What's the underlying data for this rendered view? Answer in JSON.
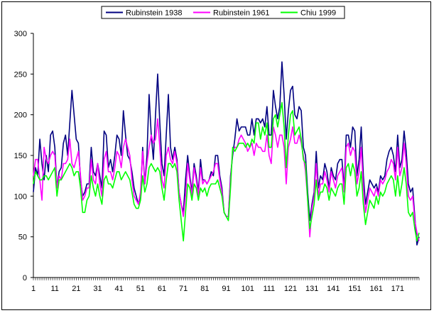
{
  "chart_data": {
    "type": "line",
    "title": "",
    "xlabel": "",
    "ylabel": "",
    "ylim": [
      0,
      300
    ],
    "yticks": [
      0,
      50,
      100,
      150,
      200,
      250,
      300
    ],
    "xticks": [
      1,
      11,
      21,
      31,
      41,
      51,
      61,
      71,
      81,
      91,
      101,
      111,
      121,
      131,
      141,
      151,
      161,
      171
    ],
    "x_count": 181,
    "grid": false,
    "legend_position": "top-center",
    "series": [
      {
        "name": "Rubinstein 1938",
        "color": "#000080",
        "values": [
          105,
          135,
          125,
          170,
          140,
          120,
          150,
          130,
          175,
          180,
          160,
          110,
          130,
          135,
          165,
          175,
          150,
          190,
          230,
          200,
          170,
          165,
          120,
          100,
          105,
          115,
          115,
          160,
          130,
          125,
          140,
          125,
          110,
          180,
          175,
          135,
          145,
          130,
          150,
          175,
          170,
          150,
          205,
          175,
          150,
          145,
          130,
          110,
          100,
          90,
          100,
          160,
          115,
          150,
          225,
          175,
          145,
          200,
          250,
          190,
          140,
          125,
          175,
          225,
          160,
          145,
          160,
          145,
          105,
          90,
          80,
          120,
          150,
          125,
          105,
          140,
          125,
          105,
          145,
          120,
          120,
          115,
          120,
          130,
          125,
          150,
          150,
          125,
          110,
          80,
          75,
          75,
          125,
          150,
          170,
          195,
          180,
          185,
          185,
          185,
          175,
          175,
          195,
          175,
          195,
          195,
          190,
          195,
          185,
          210,
          175,
          175,
          230,
          210,
          195,
          210,
          265,
          225,
          170,
          205,
          230,
          235,
          200,
          195,
          210,
          205,
          160,
          150,
          105,
          70,
          90,
          105,
          155,
          110,
          125,
          120,
          140,
          130,
          110,
          135,
          125,
          120,
          140,
          145,
          145,
          110,
          175,
          175,
          160,
          185,
          180,
          125,
          145,
          185,
          125,
          90,
          105,
          120,
          115,
          110,
          115,
          105,
          125,
          120,
          125,
          145,
          155,
          160,
          150,
          130,
          175,
          135,
          145,
          180,
          155,
          115,
          105,
          110,
          75,
          40,
          50
        ]
      },
      {
        "name": "Rubinstein 1961",
        "color": "#ff00ff",
        "values": [
          125,
          145,
          145,
          120,
          95,
          160,
          145,
          140,
          150,
          155,
          150,
          110,
          125,
          120,
          140,
          140,
          145,
          170,
          140,
          135,
          145,
          155,
          125,
          95,
          100,
          110,
          110,
          145,
          120,
          115,
          140,
          115,
          100,
          145,
          155,
          130,
          130,
          120,
          135,
          155,
          150,
          135,
          160,
          170,
          160,
          150,
          120,
          100,
          95,
          90,
          105,
          155,
          115,
          140,
          160,
          175,
          165,
          170,
          195,
          160,
          120,
          110,
          150,
          160,
          145,
          140,
          155,
          140,
          105,
          90,
          75,
          100,
          140,
          120,
          100,
          135,
          120,
          100,
          135,
          115,
          120,
          115,
          120,
          125,
          130,
          140,
          140,
          120,
          105,
          80,
          75,
          75,
          120,
          155,
          160,
          160,
          170,
          175,
          170,
          165,
          155,
          160,
          165,
          150,
          165,
          160,
          160,
          155,
          155,
          175,
          150,
          140,
          185,
          175,
          160,
          175,
          175,
          160,
          115,
          160,
          170,
          185,
          165,
          165,
          175,
          165,
          150,
          130,
          95,
          50,
          85,
          100,
          140,
          100,
          115,
          115,
          130,
          120,
          105,
          130,
          120,
          110,
          125,
          130,
          135,
          105,
          160,
          165,
          150,
          160,
          155,
          115,
          130,
          160,
          110,
          80,
          95,
          110,
          105,
          100,
          110,
          100,
          120,
          115,
          120,
          130,
          135,
          145,
          140,
          120,
          160,
          125,
          135,
          165,
          140,
          100,
          95,
          100,
          70,
          55,
          45
        ]
      },
      {
        "name": "Chiu 1999",
        "color": "#00ff00",
        "values": [
          115,
          130,
          125,
          120,
          120,
          125,
          125,
          120,
          125,
          130,
          135,
          100,
          120,
          120,
          125,
          130,
          135,
          140,
          135,
          125,
          130,
          130,
          110,
          80,
          80,
          95,
          100,
          125,
          110,
          100,
          115,
          100,
          90,
          120,
          125,
          115,
          115,
          110,
          120,
          130,
          130,
          120,
          125,
          130,
          125,
          120,
          105,
          90,
          85,
          85,
          95,
          125,
          105,
          115,
          135,
          140,
          135,
          130,
          135,
          130,
          110,
          95,
          120,
          140,
          140,
          135,
          140,
          130,
          95,
          70,
          45,
          80,
          115,
          110,
          95,
          115,
          110,
          95,
          110,
          105,
          110,
          100,
          110,
          115,
          115,
          115,
          120,
          110,
          100,
          80,
          75,
          70,
          110,
          160,
          155,
          160,
          165,
          165,
          165,
          160,
          165,
          160,
          170,
          165,
          190,
          190,
          170,
          185,
          175,
          190,
          160,
          160,
          195,
          200,
          185,
          200,
          215,
          185,
          135,
          175,
          200,
          205,
          175,
          180,
          185,
          170,
          145,
          140,
          95,
          60,
          75,
          90,
          120,
          95,
          105,
          105,
          115,
          110,
          95,
          110,
          105,
          100,
          110,
          115,
          115,
          90,
          135,
          140,
          125,
          140,
          130,
          100,
          110,
          130,
          90,
          65,
          80,
          95,
          90,
          85,
          100,
          90,
          105,
          100,
          105,
          115,
          120,
          125,
          120,
          100,
          125,
          100,
          115,
          135,
          115,
          80,
          75,
          80,
          60,
          45,
          55
        ]
      }
    ]
  }
}
